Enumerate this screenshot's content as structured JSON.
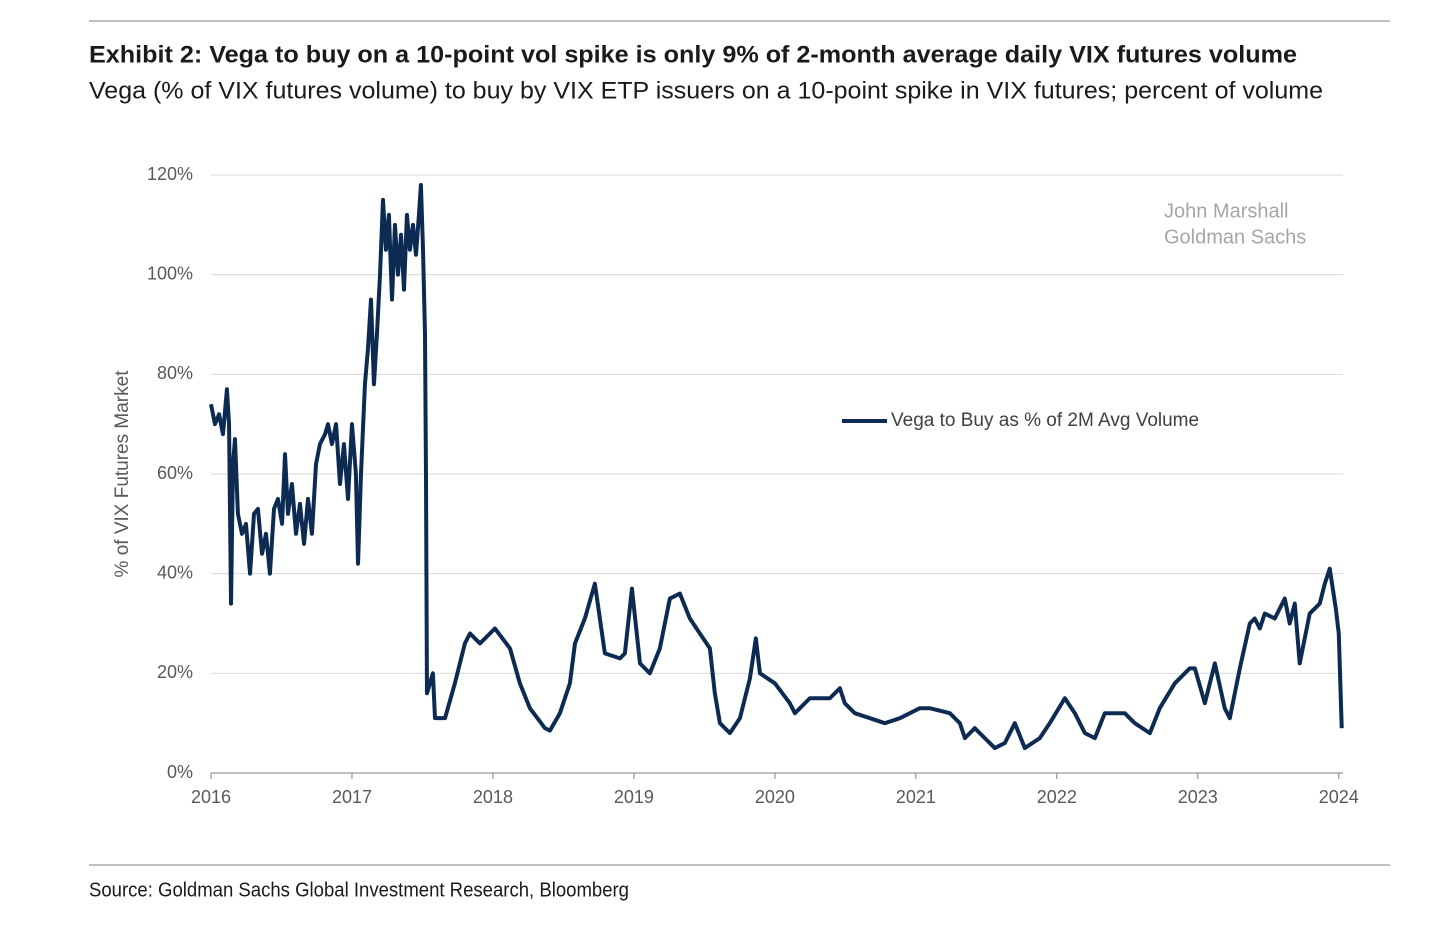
{
  "chart_data": {
    "type": "line",
    "title": "Exhibit 2: Vega to buy on a 10-point vol spike is only 9% of 2-month average daily VIX futures volume",
    "subtitle": "Vega (% of VIX futures volume) to buy by VIX ETP issuers on a 10-point spike in VIX futures; percent of volume",
    "y_label": "% of VIX Futures Market",
    "annotations": [
      "John Marshall",
      "Goldman Sachs"
    ],
    "source": "Source: Goldman Sachs Global Investment Research, Bloomberg",
    "legend": "center",
    "grid": true,
    "xlim": [
      2016,
      2024.03
    ],
    "xticks": [
      2016,
      2017,
      2018,
      2019,
      2020,
      2021,
      2022,
      2023,
      2024
    ],
    "ylim": [
      0,
      120
    ],
    "yticks": [
      {
        "value": 0,
        "label": "0%"
      },
      {
        "value": 20,
        "label": "20%"
      },
      {
        "value": 40,
        "label": "40%"
      },
      {
        "value": 60,
        "label": "60%"
      },
      {
        "value": 80,
        "label": "80%"
      },
      {
        "value": 100,
        "label": "100%"
      },
      {
        "value": 120,
        "label": "120%"
      }
    ],
    "x": [
      2016.0,
      2016.028,
      2016.057,
      2016.085,
      2016.113,
      2016.128,
      2016.142,
      2016.156,
      2016.17,
      2016.191,
      2016.22,
      2016.248,
      2016.277,
      2016.305,
      2016.333,
      2016.362,
      2016.39,
      2016.418,
      2016.447,
      2016.475,
      2016.504,
      2016.525,
      2016.546,
      2016.574,
      2016.603,
      2016.631,
      2016.66,
      2016.688,
      2016.716,
      2016.745,
      2016.773,
      2016.809,
      2016.83,
      2016.858,
      2016.887,
      2016.915,
      2016.943,
      2016.972,
      2017.0,
      2017.028,
      2017.043,
      2017.064,
      2017.092,
      2017.113,
      2017.135,
      2017.156,
      2017.177,
      2017.199,
      2017.22,
      2017.241,
      2017.262,
      2017.284,
      2017.305,
      2017.326,
      2017.348,
      2017.369,
      2017.39,
      2017.411,
      2017.433,
      2017.454,
      2017.475,
      2017.489,
      2017.504,
      2017.518,
      2017.525,
      2017.532,
      2017.553,
      2017.574,
      2017.589,
      2017.66,
      2017.73,
      2017.801,
      2017.837,
      2017.908,
      2018.014,
      2018.121,
      2018.191,
      2018.262,
      2018.369,
      2018.404,
      2018.475,
      2018.546,
      2018.582,
      2018.652,
      2018.723,
      2018.794,
      2018.901,
      2018.936,
      2018.986,
      2019.043,
      2019.113,
      2019.184,
      2019.255,
      2019.326,
      2019.397,
      2019.468,
      2019.539,
      2019.574,
      2019.61,
      2019.681,
      2019.752,
      2019.823,
      2019.865,
      2019.894,
      2020.0,
      2020.106,
      2020.142,
      2020.248,
      2020.39,
      2020.461,
      2020.496,
      2020.567,
      2020.674,
      2020.78,
      2020.887,
      2021.028,
      2021.099,
      2021.241,
      2021.312,
      2021.348,
      2021.418,
      2021.489,
      2021.56,
      2021.631,
      2021.702,
      2021.773,
      2021.879,
      2021.95,
      2022.057,
      2022.128,
      2022.199,
      2022.27,
      2022.34,
      2022.482,
      2022.553,
      2022.66,
      2022.73,
      2022.837,
      2022.943,
      2022.979,
      2023.05,
      2023.121,
      2023.191,
      2023.227,
      2023.298,
      2023.369,
      2023.404,
      2023.44,
      2023.475,
      2023.546,
      2023.617,
      2023.652,
      2023.688,
      2023.723,
      2023.794,
      2023.865,
      2023.901,
      2023.936,
      2023.979,
      2024.0,
      2024.021
    ],
    "series": [
      {
        "name": "Vega to Buy as % of 2M Avg Volume",
        "color": "#0d2b52",
        "values": [
          74,
          70,
          72,
          68,
          77,
          70,
          34,
          62,
          67,
          52,
          48,
          50,
          40,
          52,
          53,
          44,
          48,
          40,
          53,
          55,
          50,
          64,
          52,
          58,
          48,
          54,
          46,
          55,
          48,
          62,
          66,
          68,
          70,
          66,
          70,
          58,
          66,
          55,
          70,
          60,
          42,
          60,
          78,
          85,
          95,
          78,
          88,
          100,
          115,
          105,
          112,
          95,
          110,
          100,
          108,
          97,
          112,
          105,
          110,
          104,
          112,
          118,
          105,
          88,
          60,
          16,
          18,
          20,
          11,
          11,
          18,
          26,
          28,
          26,
          29,
          25,
          18,
          13,
          9,
          8.5,
          12,
          18,
          26,
          31,
          38,
          24,
          23,
          24,
          37,
          22,
          20,
          25,
          35,
          36,
          31,
          28,
          25,
          16,
          10,
          8,
          11,
          19,
          27,
          20,
          18,
          14,
          12,
          15,
          15,
          17,
          14,
          12,
          11,
          10,
          11,
          13,
          13,
          12,
          10,
          7,
          9,
          7,
          5,
          6,
          10,
          5,
          7,
          10,
          15,
          12,
          8,
          7,
          12,
          12,
          10,
          8,
          13,
          18,
          21,
          21,
          14,
          22,
          13,
          11,
          21,
          30,
          31,
          29,
          32,
          31,
          35,
          30,
          34,
          22,
          32,
          34,
          38,
          41,
          33,
          28,
          9
        ]
      }
    ]
  }
}
